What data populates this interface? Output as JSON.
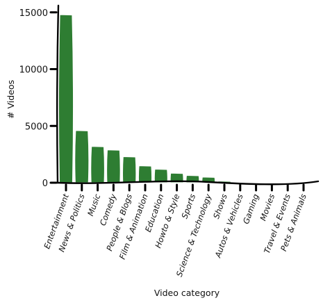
{
  "chart_data": {
    "type": "bar",
    "title": "",
    "xlabel": "Video category",
    "ylabel": "# Videos",
    "ylim": [
      0,
      15600
    ],
    "yticks": [
      0,
      5000,
      10000,
      15000
    ],
    "ytick_labels": [
      "0",
      "5000",
      "10000",
      "15000"
    ],
    "categories": [
      "Entertainment",
      "News & Politics",
      "Music",
      "Comedy",
      "People & Blogs",
      "Film & Animation",
      "Education",
      "Howto & Style",
      "Sports",
      "Science & Technology",
      "Shows",
      "Autos & Vehicles",
      "Gaming",
      "Movies",
      "Travel & Events",
      "Pets & Animals"
    ],
    "values": [
      14800,
      4600,
      3200,
      2900,
      2300,
      1500,
      1200,
      850,
      650,
      500,
      150,
      80,
      60,
      50,
      20,
      10
    ],
    "bar_color": "#2e7d32",
    "grid": false,
    "style": "hand-drawn"
  }
}
